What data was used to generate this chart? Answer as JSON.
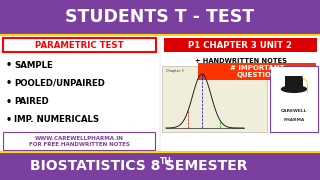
{
  "bg_purple": "#7B3FA0",
  "title_text": "STUDENTS T - TEST",
  "title_color": "#FFFFFF",
  "parametric_text": "PARAMETRIC TEST",
  "parametric_color": "#FF0000",
  "chapter_text": "P1 CHAPTER 3 UNIT 2",
  "chapter_bg": "#DD0000",
  "chapter_color": "#FFFFFF",
  "handwritten_text": "+ HANDWRITTEN NOTES",
  "important_text": "# IMPORTANT\nQUESTION",
  "important_bg": "#FF3300",
  "bullet_items": [
    "SAMPLE",
    "POOLED/UNPAIRED",
    "PAIRED",
    "IMP. NUMERICALS"
  ],
  "website_line1": "WWW.CAREWELLPHARMA.IN",
  "website_line2": "FOR FREE HANDWRITTEN NOTES",
  "website_color": "#7B3FA0",
  "bottom_text": "BIOSTATISTICS 8",
  "bottom_th": "TH",
  "bottom_text2": " SEMESTER",
  "bottom_color": "#FFFFFF",
  "border_color": "#FFD700",
  "notes_bg": "#F0EED8",
  "logo_border": "#7B3FA0"
}
